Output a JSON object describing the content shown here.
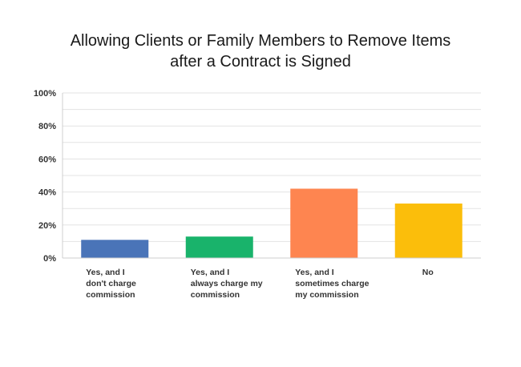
{
  "chart_data": {
    "type": "bar",
    "title_lines": [
      "Allowing Clients or Family Members to Remove Items",
      "after a Contract is Signed"
    ],
    "categories": [
      [
        "Yes, and I",
        "don't charge",
        "commission"
      ],
      [
        "Yes, and I",
        "always charge my",
        "commission"
      ],
      [
        "Yes, and I",
        "sometimes charge",
        "my commission"
      ],
      [
        "No"
      ]
    ],
    "values": [
      11,
      13,
      42,
      33
    ],
    "colors": [
      "#4a74b8",
      "#19b36b",
      "#fe8550",
      "#fbbe0b"
    ],
    "ylim": [
      0,
      100
    ],
    "yticks": [
      0,
      20,
      40,
      60,
      80,
      100
    ],
    "ytick_labels": [
      "0%",
      "20%",
      "40%",
      "60%",
      "80%",
      "100%"
    ],
    "grid": true
  }
}
